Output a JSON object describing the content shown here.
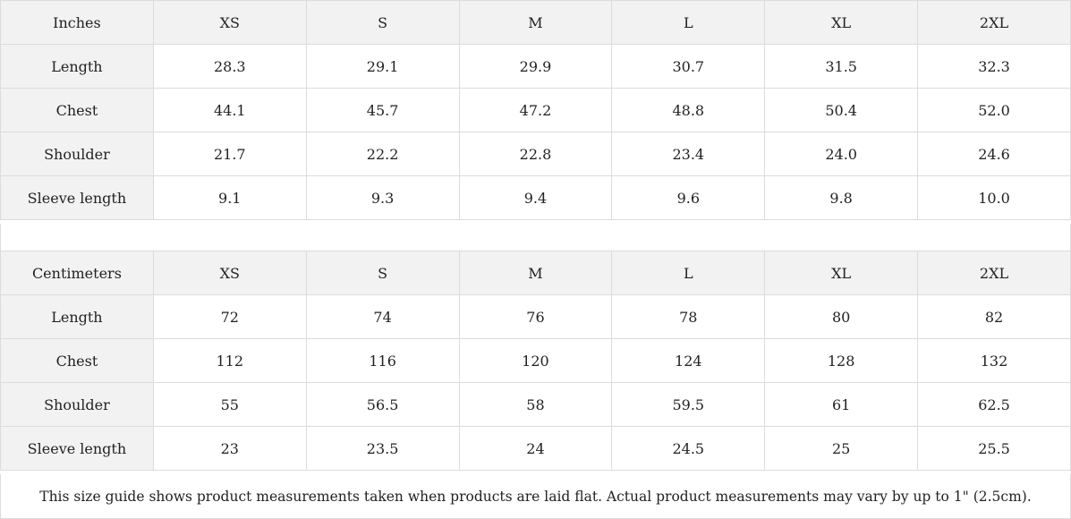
{
  "tables": [
    {
      "id": "inches",
      "header": [
        "Inches",
        "XS",
        "S",
        "M",
        "L",
        "XL",
        "2XL"
      ],
      "rows": [
        {
          "label": "Length",
          "values": [
            "28.3",
            "29.1",
            "29.9",
            "30.7",
            "31.5",
            "32.3"
          ]
        },
        {
          "label": "Chest",
          "values": [
            "44.1",
            "45.7",
            "47.2",
            "48.8",
            "50.4",
            "52.0"
          ]
        },
        {
          "label": "Shoulder",
          "values": [
            "21.7",
            "22.2",
            "22.8",
            "23.4",
            "24.0",
            "24.6"
          ]
        },
        {
          "label": "Sleeve length",
          "values": [
            "9.1",
            "9.3",
            "9.4",
            "9.6",
            "9.8",
            "10.0"
          ]
        }
      ]
    },
    {
      "id": "cm",
      "header": [
        "Centimeters",
        "XS",
        "S",
        "M",
        "L",
        "XL",
        "2XL"
      ],
      "rows": [
        {
          "label": "Length",
          "values": [
            "72",
            "74",
            "76",
            "78",
            "80",
            "82"
          ]
        },
        {
          "label": "Chest",
          "values": [
            "112",
            "116",
            "120",
            "124",
            "128",
            "132"
          ]
        },
        {
          "label": "Shoulder",
          "values": [
            "55",
            "56.5",
            "58",
            "59.5",
            "61",
            "62.5"
          ]
        },
        {
          "label": "Sleeve length",
          "values": [
            "23",
            "23.5",
            "24",
            "24.5",
            "25",
            "25.5"
          ]
        }
      ]
    }
  ],
  "footnote": "This size guide shows product measurements taken when products are laid flat.  Actual product measurements may vary by up to 1\" (2.5cm).",
  "colors": {
    "header_background": "#f2f2f2",
    "cell_background": "#ffffff",
    "border": "#dcdcdc",
    "text": "#222222"
  }
}
